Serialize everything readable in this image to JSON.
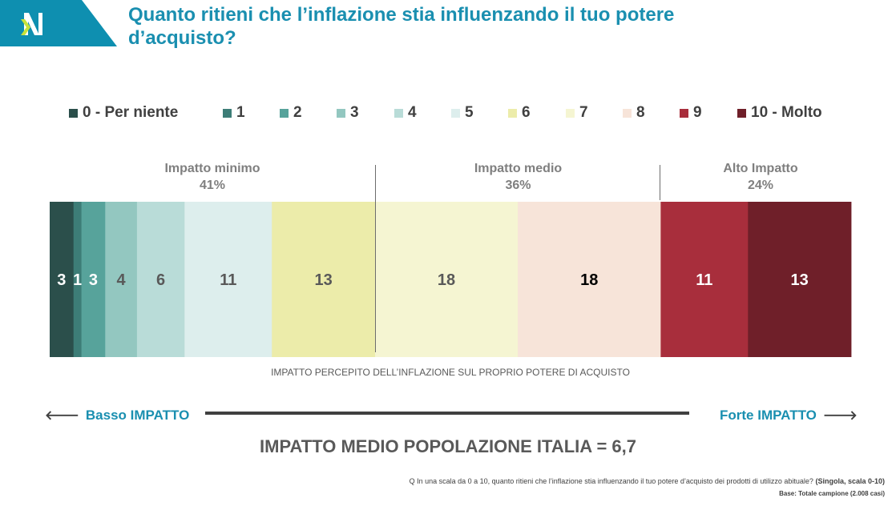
{
  "header": {
    "title_line1": "Quanto ritieni che l’inflazione stia influenzando il tuo potere",
    "title_line2": "d’acquisto?"
  },
  "colors": {
    "brand": "#0e8fb0",
    "title": "#1a8fb0",
    "logo_mark": "#c7e33a"
  },
  "chart_data": {
    "type": "bar",
    "orientation": "horizontal-stacked-100",
    "categories": [
      "0 - Per niente",
      "1",
      "2",
      "3",
      "4",
      "5",
      "6",
      "7",
      "8",
      "9",
      "10 - Molto"
    ],
    "values": [
      3,
      1,
      3,
      4,
      6,
      11,
      13,
      18,
      18,
      11,
      13
    ],
    "value_labels": [
      "3",
      "1",
      "3",
      "4",
      "6",
      "11",
      "13",
      "18",
      "18",
      "11",
      "13"
    ],
    "series_colors": [
      "#2b4f4b",
      "#3d7d77",
      "#57a39b",
      "#93c7c0",
      "#b9dcd8",
      "#ddeeed",
      "#ececaa",
      "#f5f5d2",
      "#f7e4d9",
      "#a82e3c",
      "#6f1f29"
    ],
    "label_colors": [
      "#ffffff",
      "#ffffff",
      "#ffffff",
      "#595959",
      "#595959",
      "#595959",
      "#595959",
      "#595959",
      "#000000",
      "#ffffff",
      "#ffffff"
    ],
    "legend_placement": "top",
    "groups": [
      {
        "label": "Impatto minimo",
        "percent": "41%"
      },
      {
        "label": "Impatto medio",
        "percent": "36%"
      },
      {
        "label": "Alto Impatto",
        "percent": "24%"
      }
    ],
    "xlabel": "IMPATTO PERCEPITO DELL’INFLAZIONE SUL PROPRIO POTERE DI ACQUISTO"
  },
  "scale": {
    "left_label": "Basso IMPATTO",
    "right_label": "Forte IMPATTO"
  },
  "summary": "IMPATTO MEDIO POPOLAZIONE ITALIA = 6,7",
  "footnote": {
    "question": "Q In una scala da 0 a 10, quanto ritieni che l’inflazione stia influenzando il tuo potere d’acquisto dei prodotti di utilizzo abituale?",
    "type": "(Singola, scala 0-10)",
    "base": "Base: Totale campione (2.008 casi)"
  }
}
